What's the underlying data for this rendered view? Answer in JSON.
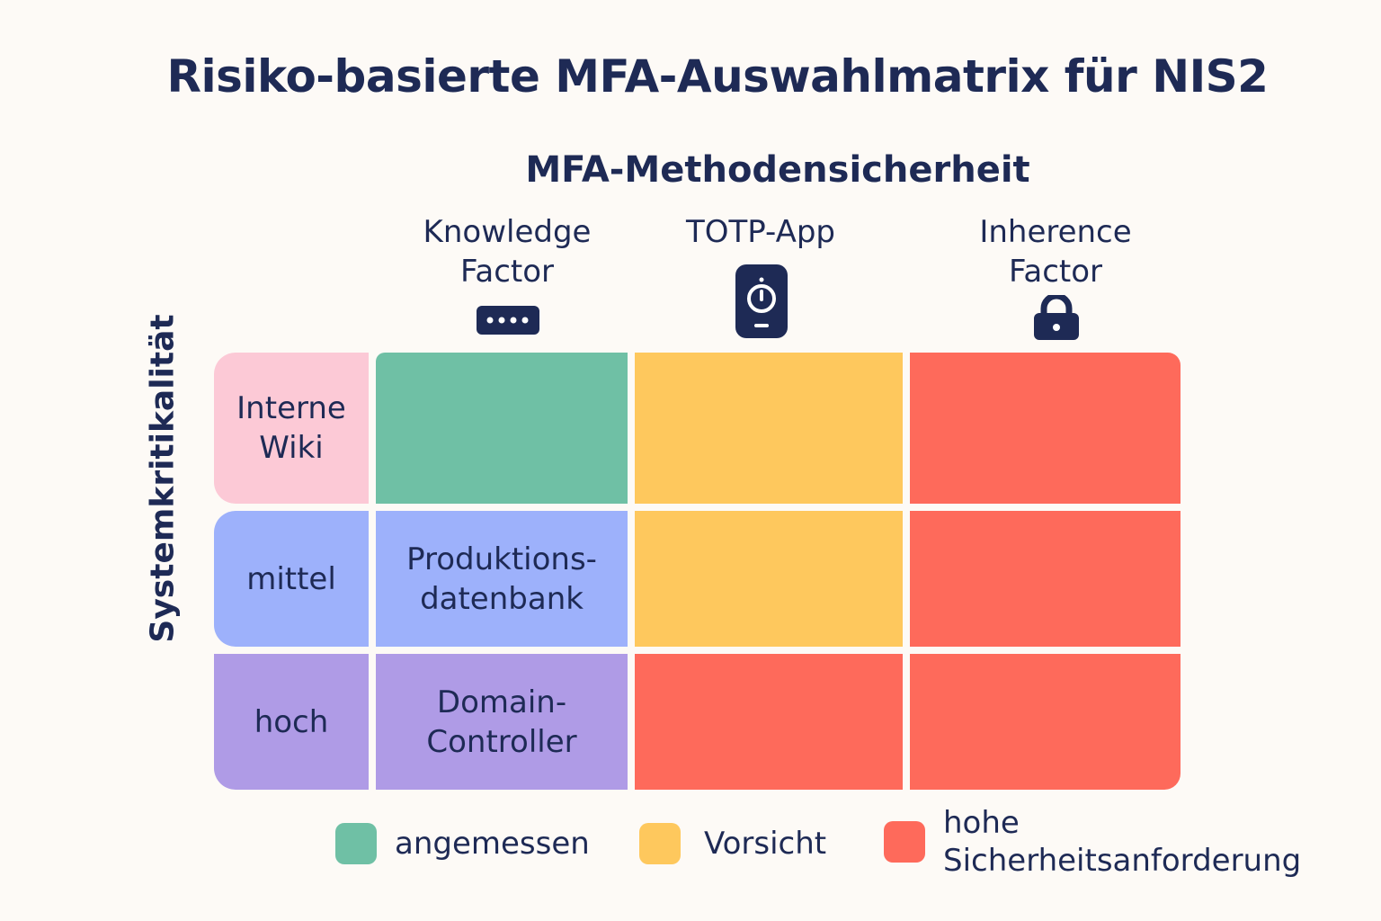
{
  "title": "Risiko-basierte MFA-Auswahlmatrix für NIS2",
  "x_axis_title": "MFA-Methodensicherheit",
  "y_axis_title": "Systemkritikalität",
  "columns": [
    {
      "label": "Knowledge\nFactor",
      "icon": "password-dots-icon"
    },
    {
      "label": "TOTP-App",
      "icon": "authenticator-device-icon"
    },
    {
      "label": "Inherence\nFactor",
      "icon": "padlock-icon"
    }
  ],
  "rows": [
    {
      "label": "Interne\nWiki",
      "example": "",
      "label_color": "#fcc9d6",
      "cells": [
        "green",
        "yellow",
        "red"
      ]
    },
    {
      "label": "mittel",
      "example": "Produktions-\ndatenbank",
      "label_color": "#9db1fb",
      "cells": [
        "blue",
        "yellow",
        "red"
      ]
    },
    {
      "label": "hoch",
      "example": "Domain-\nController",
      "label_color": "#af9be6",
      "cells": [
        "purple",
        "red",
        "red"
      ]
    }
  ],
  "colors": {
    "green": "#6fc0a5",
    "yellow": "#fec85d",
    "red": "#fe6a5b",
    "blue": "#9db1fb",
    "purple": "#af9be6",
    "text": "#1e2a55"
  },
  "legend": [
    {
      "label": "angemessen",
      "color": "#6fc0a5"
    },
    {
      "label": "Vorsicht",
      "color": "#fec85d"
    },
    {
      "label": "hohe\nSicherheitsanforderung",
      "color": "#fe6a5b"
    }
  ]
}
